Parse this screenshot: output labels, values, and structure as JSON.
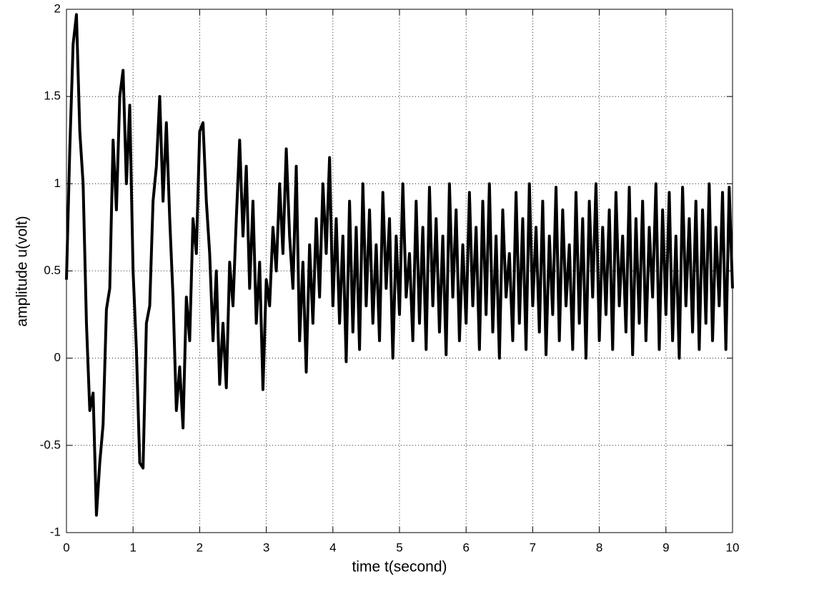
{
  "chart_data": {
    "type": "line",
    "xlabel": "time t(second)",
    "ylabel": "amplitude u(volt)",
    "color": "#000000",
    "grid": true,
    "xlim": [
      0,
      10
    ],
    "xticks": [
      0,
      1,
      2,
      3,
      4,
      5,
      6,
      7,
      8,
      9,
      10
    ],
    "ylim": [
      -1,
      2
    ],
    "yticks": [
      -1,
      -0.5,
      0,
      0.5,
      1,
      1.5,
      2
    ],
    "x": [
      0,
      0.05,
      0.1,
      0.15,
      0.2,
      0.25,
      0.3,
      0.35,
      0.4,
      0.45,
      0.5,
      0.55,
      0.6,
      0.65,
      0.7,
      0.75,
      0.8,
      0.85,
      0.9,
      0.95,
      1,
      1.05,
      1.1,
      1.15,
      1.2,
      1.25,
      1.3,
      1.35,
      1.4,
      1.45,
      1.5,
      1.55,
      1.6,
      1.65,
      1.7,
      1.75,
      1.8,
      1.85,
      1.9,
      1.95,
      2,
      2.05,
      2.1,
      2.15,
      2.2,
      2.25,
      2.3,
      2.35,
      2.4,
      2.45,
      2.5,
      2.55,
      2.6,
      2.65,
      2.7,
      2.75,
      2.8,
      2.85,
      2.9,
      2.95,
      3,
      3.05,
      3.1,
      3.15,
      3.2,
      3.25,
      3.3,
      3.35,
      3.4,
      3.45,
      3.5,
      3.55,
      3.6,
      3.65,
      3.7,
      3.75,
      3.8,
      3.85,
      3.9,
      3.95,
      4,
      4.05,
      4.1,
      4.15,
      4.2,
      4.25,
      4.3,
      4.35,
      4.4,
      4.45,
      4.5,
      4.55,
      4.6,
      4.65,
      4.7,
      4.75,
      4.8,
      4.85,
      4.9,
      4.95,
      5,
      5.05,
      5.1,
      5.15,
      5.2,
      5.25,
      5.3,
      5.35,
      5.4,
      5.45,
      5.5,
      5.55,
      5.6,
      5.65,
      5.7,
      5.75,
      5.8,
      5.85,
      5.9,
      5.95,
      6,
      6.05,
      6.1,
      6.15,
      6.2,
      6.25,
      6.3,
      6.35,
      6.4,
      6.45,
      6.5,
      6.55,
      6.6,
      6.65,
      6.7,
      6.75,
      6.8,
      6.85,
      6.9,
      6.95,
      7,
      7.05,
      7.1,
      7.15,
      7.2,
      7.25,
      7.3,
      7.35,
      7.4,
      7.45,
      7.5,
      7.55,
      7.6,
      7.65,
      7.7,
      7.75,
      7.8,
      7.85,
      7.9,
      7.95,
      8,
      8.05,
      8.1,
      8.15,
      8.2,
      8.25,
      8.3,
      8.35,
      8.4,
      8.45,
      8.5,
      8.55,
      8.6,
      8.65,
      8.7,
      8.75,
      8.8,
      8.85,
      8.9,
      8.95,
      9,
      9.05,
      9.1,
      9.15,
      9.2,
      9.25,
      9.3,
      9.35,
      9.4,
      9.45,
      9.5,
      9.55,
      9.6,
      9.65,
      9.7,
      9.75,
      9.8,
      9.85,
      9.9,
      9.95,
      10
    ],
    "values": [
      0.45,
      1.2,
      1.8,
      1.97,
      1.3,
      1.0,
      0.2,
      -0.3,
      -0.2,
      -0.9,
      -0.6,
      -0.38,
      0.28,
      0.4,
      1.25,
      0.85,
      1.5,
      1.65,
      1.0,
      1.45,
      0.5,
      0.05,
      -0.6,
      -0.63,
      0.2,
      0.3,
      0.9,
      1.1,
      1.5,
      0.9,
      1.35,
      0.8,
      0.35,
      -0.3,
      -0.05,
      -0.4,
      0.35,
      0.1,
      0.8,
      0.6,
      1.3,
      1.35,
      0.9,
      0.6,
      0.1,
      0.5,
      -0.15,
      0.2,
      -0.17,
      0.55,
      0.3,
      0.8,
      1.25,
      0.7,
      1.1,
      0.4,
      0.9,
      0.2,
      0.55,
      -0.18,
      0.45,
      0.3,
      0.75,
      0.5,
      1.0,
      0.6,
      1.2,
      0.7,
      0.4,
      1.1,
      0.1,
      0.55,
      -0.08,
      0.65,
      0.2,
      0.8,
      0.35,
      1.0,
      0.6,
      1.15,
      0.3,
      0.8,
      0.2,
      0.7,
      -0.02,
      0.9,
      0.15,
      0.75,
      0.05,
      1.0,
      0.3,
      0.85,
      0.2,
      0.65,
      0.1,
      0.95,
      0.4,
      0.8,
      0.0,
      0.7,
      0.25,
      1.0,
      0.35,
      0.6,
      0.1,
      0.9,
      0.2,
      0.75,
      0.05,
      0.98,
      0.3,
      0.8,
      0.15,
      0.7,
      0.02,
      1.0,
      0.35,
      0.85,
      0.1,
      0.65,
      0.2,
      0.95,
      0.3,
      0.75,
      0.05,
      0.9,
      0.25,
      1.0,
      0.15,
      0.7,
      0.0,
      0.85,
      0.35,
      0.6,
      0.1,
      0.95,
      0.2,
      0.8,
      0.05,
      1.0,
      0.3,
      0.75,
      0.15,
      0.9,
      0.02,
      0.7,
      0.25,
      0.98,
      0.1,
      0.85,
      0.3,
      0.65,
      0.05,
      0.95,
      0.2,
      0.8,
      0.0,
      0.9,
      0.35,
      1.0,
      0.1,
      0.75,
      0.25,
      0.85,
      0.05,
      0.95,
      0.3,
      0.7,
      0.15,
      0.98,
      0.02,
      0.8,
      0.2,
      0.9,
      0.1,
      0.75,
      0.35,
      1.0,
      0.05,
      0.85,
      0.25,
      0.95,
      0.1,
      0.7,
      0.0,
      0.98,
      0.3,
      0.8,
      0.15,
      0.9,
      0.05,
      0.85,
      0.2,
      1.0,
      0.1,
      0.75,
      0.3,
      0.95,
      0.05,
      0.98,
      0.4
    ]
  }
}
